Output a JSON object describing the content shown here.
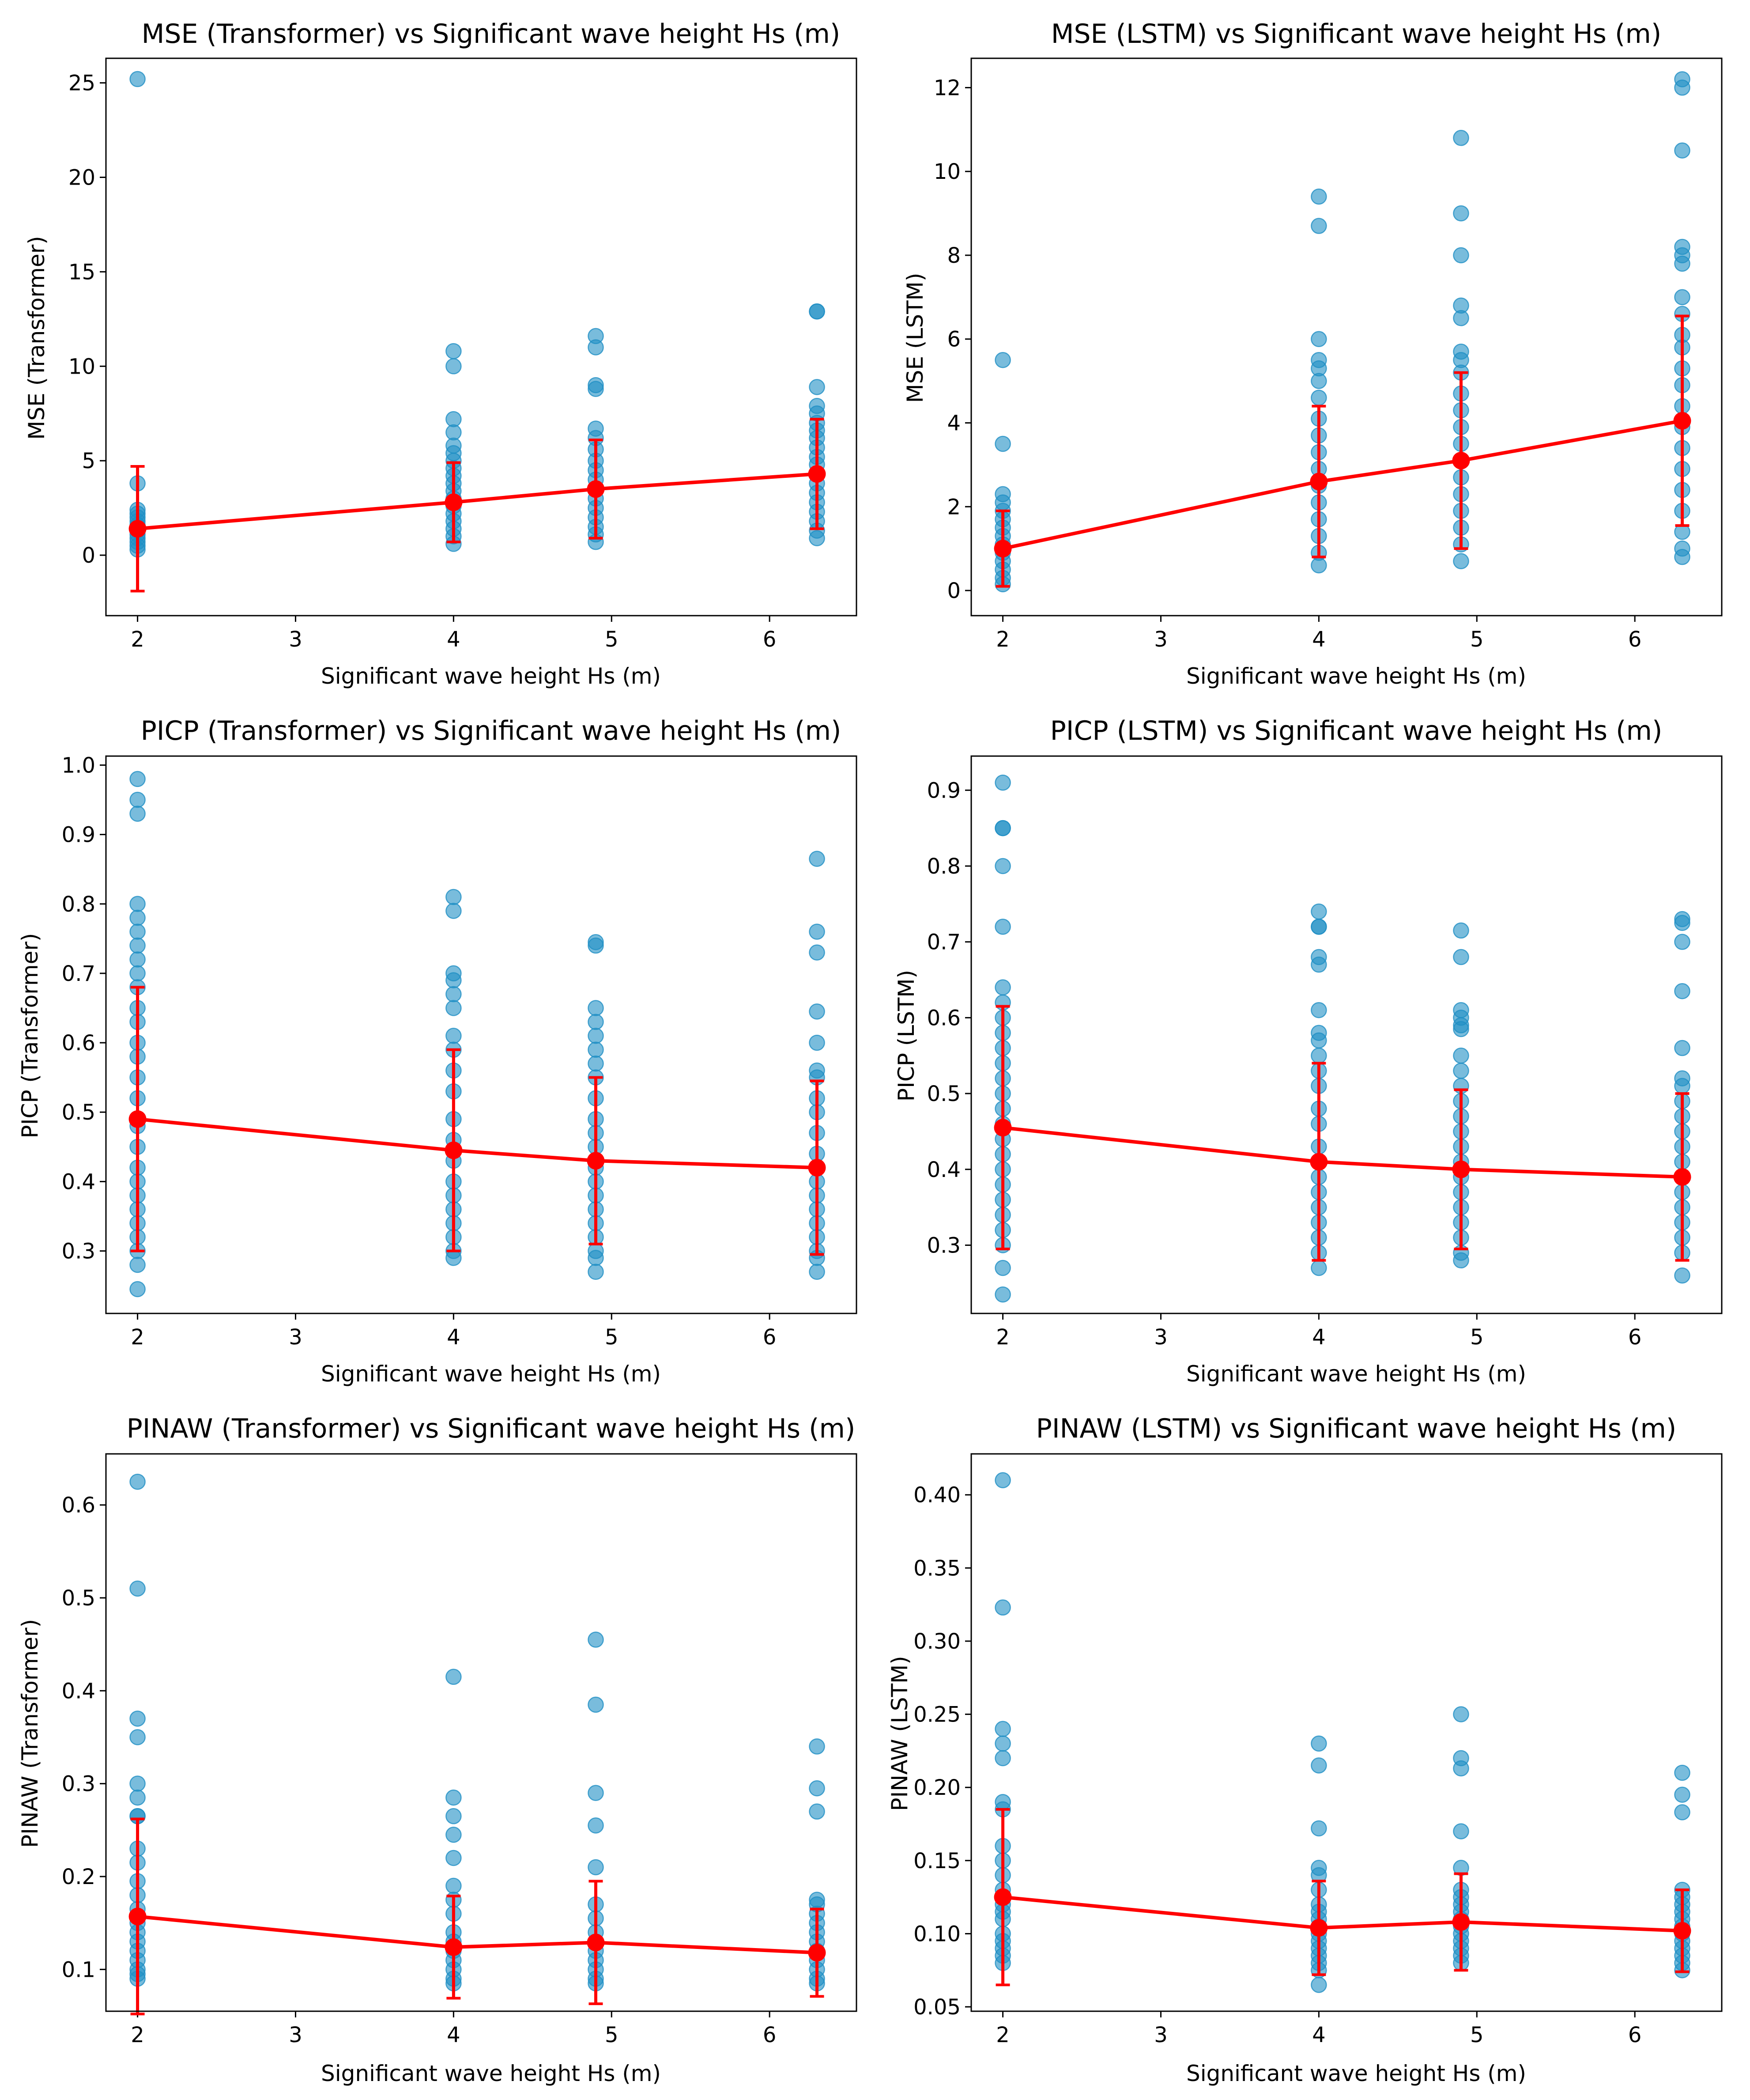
{
  "colors": {
    "scatter": "#1f8fc4",
    "mean": "#ff0000",
    "axes": "#000000"
  },
  "chart_data": [
    {
      "type": "scatter",
      "title": "MSE (Transformer) vs Significant wave height Hs (m)",
      "xlabel": "Significant wave height Hs (m)",
      "ylabel": "MSE (Transformer)",
      "xlim": [
        1.8,
        6.55
      ],
      "ylim": [
        -3.2,
        26.3
      ],
      "xticks": [
        2,
        3,
        4,
        5,
        6
      ],
      "yticks": [
        0,
        5,
        10,
        15,
        20,
        25
      ],
      "ytick_labels": [
        "0",
        "5",
        "10",
        "15",
        "20",
        "25"
      ],
      "x": [
        2,
        4,
        4.9,
        6.3
      ],
      "points": [
        [
          25.2,
          3.8,
          2.4,
          2.2,
          2.0,
          1.8,
          1.6,
          1.5,
          1.3,
          1.1,
          0.9,
          0.7,
          0.5,
          0.3
        ],
        [
          10.8,
          10.0,
          7.2,
          6.5,
          5.8,
          5.4,
          5.0,
          4.6,
          4.2,
          3.8,
          3.4,
          3.0,
          2.6,
          2.2,
          1.8,
          1.4,
          1.0,
          0.6
        ],
        [
          11.6,
          11.0,
          9.0,
          8.8,
          6.7,
          6.2,
          5.6,
          5.0,
          4.5,
          4.0,
          3.5,
          3.0,
          2.5,
          2.0,
          1.5,
          1.1,
          0.7
        ],
        [
          12.9,
          12.9,
          8.9,
          7.9,
          7.5,
          7.0,
          6.6,
          6.2,
          5.7,
          5.2,
          4.8,
          4.3,
          3.8,
          3.3,
          2.8,
          2.3,
          1.8,
          1.3,
          0.9
        ]
      ],
      "means": [
        1.4,
        2.8,
        3.5,
        4.3
      ],
      "errors": [
        3.3,
        2.1,
        2.6,
        2.9
      ]
    },
    {
      "type": "scatter",
      "title": "MSE (LSTM) vs Significant wave height Hs (m)",
      "xlabel": "Significant wave height Hs (m)",
      "ylabel": "MSE (LSTM)",
      "xlim": [
        1.8,
        6.55
      ],
      "ylim": [
        -0.6,
        12.7
      ],
      "xticks": [
        2,
        3,
        4,
        5,
        6
      ],
      "yticks": [
        0,
        2,
        4,
        6,
        8,
        10,
        12
      ],
      "ytick_labels": [
        "0",
        "2",
        "4",
        "6",
        "8",
        "10",
        "12"
      ],
      "x": [
        2,
        4,
        4.9,
        6.3
      ],
      "points": [
        [
          5.5,
          3.5,
          2.3,
          2.1,
          1.9,
          1.7,
          1.5,
          1.3,
          1.1,
          0.9,
          0.7,
          0.5,
          0.3,
          0.15
        ],
        [
          9.4,
          8.7,
          6.0,
          5.5,
          5.3,
          5.0,
          4.6,
          4.1,
          3.7,
          3.3,
          2.9,
          2.5,
          2.1,
          1.7,
          1.3,
          0.9,
          0.6
        ],
        [
          10.8,
          9.0,
          8.0,
          6.8,
          6.5,
          5.7,
          5.5,
          5.2,
          4.7,
          4.3,
          3.9,
          3.5,
          3.1,
          2.7,
          2.3,
          1.9,
          1.5,
          1.1,
          0.7
        ],
        [
          12.2,
          12.0,
          10.5,
          8.2,
          8.0,
          7.8,
          7.0,
          6.6,
          6.1,
          5.8,
          5.3,
          4.9,
          4.4,
          3.9,
          3.4,
          2.9,
          2.4,
          1.9,
          1.4,
          1.0,
          0.8
        ]
      ],
      "means": [
        1.0,
        2.6,
        3.1,
        4.05
      ],
      "errors": [
        0.9,
        1.8,
        2.1,
        2.5
      ]
    },
    {
      "type": "scatter",
      "title": "PICP (Transformer) vs Significant wave height Hs (m)",
      "xlabel": "Significant wave height Hs (m)",
      "ylabel": "PICP (Transformer)",
      "xlim": [
        1.8,
        6.55
      ],
      "ylim": [
        0.21,
        1.013
      ],
      "xticks": [
        2,
        3,
        4,
        5,
        6
      ],
      "yticks": [
        0.3,
        0.4,
        0.5,
        0.6,
        0.7,
        0.8,
        0.9,
        1.0
      ],
      "ytick_labels": [
        "0.3",
        "0.4",
        "0.5",
        "0.6",
        "0.7",
        "0.8",
        "0.9",
        "1.0"
      ],
      "x": [
        2,
        4,
        4.9,
        6.3
      ],
      "points": [
        [
          0.98,
          0.95,
          0.93,
          0.8,
          0.78,
          0.76,
          0.74,
          0.72,
          0.7,
          0.68,
          0.65,
          0.63,
          0.6,
          0.58,
          0.55,
          0.52,
          0.48,
          0.45,
          0.42,
          0.4,
          0.38,
          0.36,
          0.34,
          0.32,
          0.3,
          0.28,
          0.245
        ],
        [
          0.81,
          0.79,
          0.7,
          0.69,
          0.67,
          0.65,
          0.61,
          0.59,
          0.56,
          0.53,
          0.49,
          0.46,
          0.43,
          0.4,
          0.38,
          0.36,
          0.34,
          0.32,
          0.3,
          0.29
        ],
        [
          0.745,
          0.74,
          0.65,
          0.63,
          0.61,
          0.59,
          0.57,
          0.55,
          0.52,
          0.49,
          0.47,
          0.45,
          0.42,
          0.4,
          0.38,
          0.36,
          0.34,
          0.32,
          0.3,
          0.29,
          0.27
        ],
        [
          0.865,
          0.76,
          0.73,
          0.645,
          0.6,
          0.56,
          0.55,
          0.52,
          0.5,
          0.47,
          0.44,
          0.42,
          0.4,
          0.38,
          0.36,
          0.34,
          0.32,
          0.3,
          0.29,
          0.27
        ]
      ],
      "means": [
        0.49,
        0.445,
        0.43,
        0.42
      ],
      "errors": [
        0.19,
        0.145,
        0.12,
        0.125
      ]
    },
    {
      "type": "scatter",
      "title": "PICP (LSTM) vs Significant wave height Hs (m)",
      "xlabel": "Significant wave height Hs (m)",
      "ylabel": "PICP (LSTM)",
      "xlim": [
        1.8,
        6.55
      ],
      "ylim": [
        0.21,
        0.945
      ],
      "xticks": [
        2,
        3,
        4,
        5,
        6
      ],
      "yticks": [
        0.3,
        0.4,
        0.5,
        0.6,
        0.7,
        0.8,
        0.9
      ],
      "ytick_labels": [
        "0.3",
        "0.4",
        "0.5",
        "0.6",
        "0.7",
        "0.8",
        "0.9"
      ],
      "x": [
        2,
        4,
        4.9,
        6.3
      ],
      "points": [
        [
          0.91,
          0.85,
          0.85,
          0.8,
          0.72,
          0.64,
          0.62,
          0.6,
          0.58,
          0.56,
          0.54,
          0.52,
          0.5,
          0.48,
          0.46,
          0.44,
          0.42,
          0.4,
          0.38,
          0.36,
          0.34,
          0.32,
          0.3,
          0.27,
          0.235
        ],
        [
          0.74,
          0.72,
          0.72,
          0.68,
          0.67,
          0.61,
          0.58,
          0.57,
          0.55,
          0.53,
          0.51,
          0.48,
          0.46,
          0.43,
          0.41,
          0.39,
          0.37,
          0.35,
          0.33,
          0.31,
          0.29,
          0.27
        ],
        [
          0.715,
          0.68,
          0.61,
          0.6,
          0.59,
          0.585,
          0.55,
          0.53,
          0.51,
          0.49,
          0.47,
          0.45,
          0.43,
          0.41,
          0.39,
          0.37,
          0.35,
          0.33,
          0.31,
          0.29,
          0.28
        ],
        [
          0.73,
          0.725,
          0.7,
          0.635,
          0.56,
          0.52,
          0.51,
          0.49,
          0.47,
          0.45,
          0.43,
          0.41,
          0.39,
          0.37,
          0.35,
          0.33,
          0.31,
          0.29,
          0.26
        ]
      ],
      "means": [
        0.455,
        0.41,
        0.4,
        0.39
      ],
      "errors": [
        0.16,
        0.13,
        0.105,
        0.11
      ]
    },
    {
      "type": "scatter",
      "title": "PINAW (Transformer) vs Significant wave height Hs (m)",
      "xlabel": "Significant wave height Hs (m)",
      "ylabel": "PINAW (Transformer)",
      "xlim": [
        1.8,
        6.55
      ],
      "ylim": [
        0.055,
        0.655
      ],
      "xticks": [
        2,
        3,
        4,
        5,
        6
      ],
      "yticks": [
        0.1,
        0.2,
        0.3,
        0.4,
        0.5,
        0.6
      ],
      "ytick_labels": [
        "0.1",
        "0.2",
        "0.3",
        "0.4",
        "0.5",
        "0.6"
      ],
      "x": [
        2,
        4,
        4.9,
        6.3
      ],
      "points": [
        [
          0.625,
          0.51,
          0.37,
          0.35,
          0.3,
          0.285,
          0.265,
          0.265,
          0.23,
          0.215,
          0.195,
          0.18,
          0.165,
          0.15,
          0.14,
          0.13,
          0.12,
          0.11,
          0.1,
          0.095,
          0.09
        ],
        [
          0.415,
          0.285,
          0.265,
          0.245,
          0.22,
          0.19,
          0.175,
          0.16,
          0.14,
          0.13,
          0.12,
          0.11,
          0.1,
          0.09,
          0.085
        ],
        [
          0.455,
          0.385,
          0.29,
          0.255,
          0.21,
          0.17,
          0.155,
          0.14,
          0.13,
          0.12,
          0.11,
          0.1,
          0.09,
          0.085
        ],
        [
          0.34,
          0.295,
          0.27,
          0.175,
          0.17,
          0.16,
          0.15,
          0.14,
          0.13,
          0.12,
          0.11,
          0.1,
          0.09,
          0.085
        ]
      ],
      "means": [
        0.157,
        0.124,
        0.129,
        0.118
      ],
      "errors": [
        0.105,
        0.055,
        0.066,
        0.047
      ]
    },
    {
      "type": "scatter",
      "title": "PINAW (LSTM) vs Significant wave height Hs (m)",
      "xlabel": "Significant wave height Hs (m)",
      "ylabel": "PINAW (LSTM)",
      "xlim": [
        1.8,
        6.55
      ],
      "ylim": [
        0.047,
        0.428
      ],
      "xticks": [
        2,
        3,
        4,
        5,
        6
      ],
      "yticks": [
        0.05,
        0.1,
        0.15,
        0.2,
        0.25,
        0.3,
        0.35,
        0.4
      ],
      "ytick_labels": [
        "0.05",
        "0.10",
        "0.15",
        "0.20",
        "0.25",
        "0.30",
        "0.35",
        "0.40"
      ],
      "x": [
        2,
        4,
        4.9,
        6.3
      ],
      "points": [
        [
          0.41,
          0.323,
          0.24,
          0.23,
          0.22,
          0.19,
          0.185,
          0.16,
          0.15,
          0.14,
          0.13,
          0.12,
          0.115,
          0.11,
          0.1,
          0.095,
          0.09,
          0.085,
          0.08
        ],
        [
          0.23,
          0.215,
          0.172,
          0.145,
          0.14,
          0.13,
          0.12,
          0.115,
          0.11,
          0.105,
          0.1,
          0.095,
          0.09,
          0.085,
          0.08,
          0.075,
          0.065
        ],
        [
          0.25,
          0.22,
          0.213,
          0.17,
          0.145,
          0.13,
          0.125,
          0.12,
          0.115,
          0.11,
          0.105,
          0.1,
          0.095,
          0.09,
          0.085,
          0.08
        ],
        [
          0.21,
          0.195,
          0.183,
          0.13,
          0.125,
          0.12,
          0.115,
          0.11,
          0.105,
          0.1,
          0.095,
          0.09,
          0.085,
          0.08,
          0.075
        ]
      ],
      "means": [
        0.125,
        0.104,
        0.108,
        0.102
      ],
      "errors": [
        0.06,
        0.032,
        0.033,
        0.028
      ]
    }
  ]
}
